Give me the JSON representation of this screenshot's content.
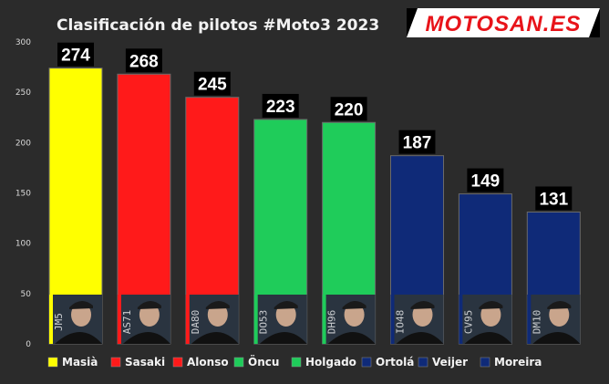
{
  "chart_data": {
    "type": "bar",
    "title": "Clasificación de pilotos #Moto3 2023",
    "categories": [
      "Masià",
      "Sasaki",
      "Alonso",
      "Öncu",
      "Holgado",
      "Ortolá",
      "Veijer",
      "Moreira"
    ],
    "values": [
      274,
      268,
      245,
      223,
      220,
      187,
      149,
      131
    ],
    "colors": [
      "#ffff00",
      "#ff1a1a",
      "#ff1a1a",
      "#1fcc5a",
      "#1fcc5a",
      "#0f2a78",
      "#0f2a78",
      "#0f2a78"
    ],
    "plates": [
      "JM5",
      "AS71",
      "DA80",
      "DO53",
      "DH96",
      "IO48",
      "CV95",
      "DM10"
    ],
    "yticks": [
      0,
      50,
      100,
      150,
      200,
      250,
      300
    ],
    "ylim": [
      0,
      300
    ],
    "grid": false,
    "legend_position": "bottom"
  },
  "branding": {
    "logo_text": "MOTOSAN.ES"
  },
  "colors": {
    "background": "#2b2b2b",
    "label_bg": "#000000",
    "photo_bg": "#2a3440"
  }
}
